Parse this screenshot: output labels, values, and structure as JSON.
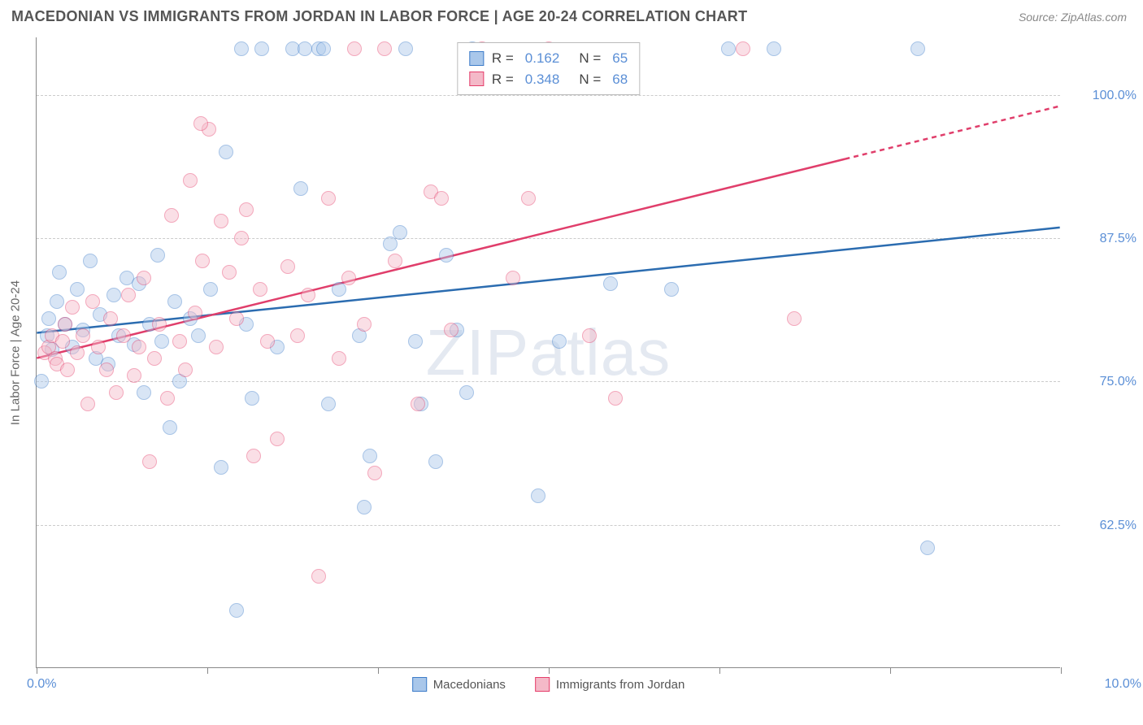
{
  "header": {
    "title": "MACEDONIAN VS IMMIGRANTS FROM JORDAN IN LABOR FORCE | AGE 20-24 CORRELATION CHART",
    "source": "Source: ZipAtlas.com"
  },
  "watermark": "ZIPatlas",
  "chart": {
    "type": "scatter",
    "y_axis_title": "In Labor Force | Age 20-24",
    "xlim": [
      0,
      10
    ],
    "ylim": [
      50,
      105
    ],
    "x_start_label": "0.0%",
    "x_end_label": "10.0%",
    "y_ticks": [
      {
        "v": 62.5,
        "label": "62.5%"
      },
      {
        "v": 75.0,
        "label": "75.0%"
      },
      {
        "v": 87.5,
        "label": "87.5%"
      },
      {
        "v": 100.0,
        "label": "100.0%"
      }
    ],
    "x_tick_positions": [
      0,
      1.67,
      3.33,
      5.0,
      6.67,
      8.33,
      10.0
    ],
    "grid_color": "#cccccc",
    "background_color": "#ffffff",
    "marker_radius": 9,
    "marker_opacity": 0.45,
    "series": [
      {
        "name": "Macedonians",
        "color_fill": "#a9c7ea",
        "color_stroke": "#3d7cc9",
        "R": "0.162",
        "N": "65",
        "trend": {
          "x1": 0,
          "y1": 79.2,
          "x2": 10,
          "y2": 88.4,
          "color": "#2b6cb0",
          "width": 2.5
        },
        "points": [
          {
            "x": 0.05,
            "y": 75.0
          },
          {
            "x": 0.1,
            "y": 79.0
          },
          {
            "x": 0.12,
            "y": 80.5
          },
          {
            "x": 0.15,
            "y": 77.8
          },
          {
            "x": 0.2,
            "y": 82.0
          },
          {
            "x": 0.22,
            "y": 84.5
          },
          {
            "x": 0.28,
            "y": 80.0
          },
          {
            "x": 0.35,
            "y": 78.0
          },
          {
            "x": 0.4,
            "y": 83.0
          },
          {
            "x": 0.45,
            "y": 79.5
          },
          {
            "x": 0.52,
            "y": 85.5
          },
          {
            "x": 0.58,
            "y": 77.0
          },
          {
            "x": 0.62,
            "y": 80.8
          },
          {
            "x": 0.7,
            "y": 76.5
          },
          {
            "x": 0.75,
            "y": 82.5
          },
          {
            "x": 0.8,
            "y": 79.0
          },
          {
            "x": 0.88,
            "y": 84.0
          },
          {
            "x": 0.95,
            "y": 78.2
          },
          {
            "x": 1.0,
            "y": 83.5
          },
          {
            "x": 1.05,
            "y": 74.0
          },
          {
            "x": 1.1,
            "y": 80.0
          },
          {
            "x": 1.18,
            "y": 86.0
          },
          {
            "x": 1.22,
            "y": 78.5
          },
          {
            "x": 1.3,
            "y": 71.0
          },
          {
            "x": 1.35,
            "y": 82.0
          },
          {
            "x": 1.4,
            "y": 75.0
          },
          {
            "x": 1.5,
            "y": 80.5
          },
          {
            "x": 1.58,
            "y": 79.0
          },
          {
            "x": 1.7,
            "y": 83.0
          },
          {
            "x": 1.8,
            "y": 67.5
          },
          {
            "x": 1.85,
            "y": 95.0
          },
          {
            "x": 1.95,
            "y": 55.0
          },
          {
            "x": 2.0,
            "y": 104.0
          },
          {
            "x": 2.05,
            "y": 80.0
          },
          {
            "x": 2.1,
            "y": 73.5
          },
          {
            "x": 2.2,
            "y": 104.0
          },
          {
            "x": 2.35,
            "y": 78.0
          },
          {
            "x": 2.5,
            "y": 104.0
          },
          {
            "x": 2.58,
            "y": 91.8
          },
          {
            "x": 2.62,
            "y": 104.0
          },
          {
            "x": 2.75,
            "y": 104.0
          },
          {
            "x": 2.85,
            "y": 73.0
          },
          {
            "x": 2.95,
            "y": 83.0
          },
          {
            "x": 3.15,
            "y": 79.0
          },
          {
            "x": 3.2,
            "y": 64.0
          },
          {
            "x": 3.25,
            "y": 68.5
          },
          {
            "x": 3.45,
            "y": 87.0
          },
          {
            "x": 3.55,
            "y": 88.0
          },
          {
            "x": 3.7,
            "y": 78.5
          },
          {
            "x": 3.75,
            "y": 73.0
          },
          {
            "x": 3.9,
            "y": 68.0
          },
          {
            "x": 4.25,
            "y": 104.0
          },
          {
            "x": 4.0,
            "y": 86.0
          },
          {
            "x": 4.1,
            "y": 79.5
          },
          {
            "x": 4.2,
            "y": 74.0
          },
          {
            "x": 4.9,
            "y": 65.0
          },
          {
            "x": 5.1,
            "y": 78.5
          },
          {
            "x": 5.6,
            "y": 83.5
          },
          {
            "x": 6.2,
            "y": 83.0
          },
          {
            "x": 6.75,
            "y": 104.0
          },
          {
            "x": 7.2,
            "y": 104.0
          },
          {
            "x": 8.6,
            "y": 104.0
          },
          {
            "x": 8.7,
            "y": 60.5
          },
          {
            "x": 3.6,
            "y": 104.0
          },
          {
            "x": 2.8,
            "y": 104.0
          }
        ]
      },
      {
        "name": "Immigrants from Jordan",
        "color_fill": "#f4b9c8",
        "color_stroke": "#e53e6b",
        "R": "0.348",
        "N": "68",
        "trend": {
          "x1": 0,
          "y1": 77.0,
          "x2": 10,
          "y2": 99.0,
          "color": "#e03e6b",
          "width": 2.5,
          "dash_from_x": 7.9
        },
        "points": [
          {
            "x": 0.08,
            "y": 77.5
          },
          {
            "x": 0.12,
            "y": 78.0
          },
          {
            "x": 0.15,
            "y": 79.0
          },
          {
            "x": 0.18,
            "y": 77.0
          },
          {
            "x": 0.2,
            "y": 76.5
          },
          {
            "x": 0.25,
            "y": 78.5
          },
          {
            "x": 0.28,
            "y": 80.0
          },
          {
            "x": 0.3,
            "y": 76.0
          },
          {
            "x": 0.35,
            "y": 81.5
          },
          {
            "x": 0.4,
            "y": 77.5
          },
          {
            "x": 0.45,
            "y": 79.0
          },
          {
            "x": 0.5,
            "y": 73.0
          },
          {
            "x": 0.55,
            "y": 82.0
          },
          {
            "x": 0.6,
            "y": 78.0
          },
          {
            "x": 0.68,
            "y": 76.0
          },
          {
            "x": 0.72,
            "y": 80.5
          },
          {
            "x": 0.78,
            "y": 74.0
          },
          {
            "x": 0.85,
            "y": 79.0
          },
          {
            "x": 0.9,
            "y": 82.5
          },
          {
            "x": 0.95,
            "y": 75.5
          },
          {
            "x": 1.0,
            "y": 78.0
          },
          {
            "x": 1.05,
            "y": 84.0
          },
          {
            "x": 1.1,
            "y": 68.0
          },
          {
            "x": 1.15,
            "y": 77.0
          },
          {
            "x": 1.2,
            "y": 80.0
          },
          {
            "x": 1.28,
            "y": 73.5
          },
          {
            "x": 1.32,
            "y": 89.5
          },
          {
            "x": 1.4,
            "y": 78.5
          },
          {
            "x": 1.45,
            "y": 76.0
          },
          {
            "x": 1.5,
            "y": 92.5
          },
          {
            "x": 1.55,
            "y": 81.0
          },
          {
            "x": 1.62,
            "y": 85.5
          },
          {
            "x": 1.68,
            "y": 97.0
          },
          {
            "x": 1.75,
            "y": 78.0
          },
          {
            "x": 1.8,
            "y": 89.0
          },
          {
            "x": 1.88,
            "y": 84.5
          },
          {
            "x": 1.95,
            "y": 80.5
          },
          {
            "x": 2.0,
            "y": 87.5
          },
          {
            "x": 2.05,
            "y": 90.0
          },
          {
            "x": 2.12,
            "y": 68.5
          },
          {
            "x": 2.18,
            "y": 83.0
          },
          {
            "x": 2.25,
            "y": 78.5
          },
          {
            "x": 2.35,
            "y": 70.0
          },
          {
            "x": 2.45,
            "y": 85.0
          },
          {
            "x": 2.55,
            "y": 79.0
          },
          {
            "x": 2.65,
            "y": 82.5
          },
          {
            "x": 2.75,
            "y": 58.0
          },
          {
            "x": 2.85,
            "y": 91.0
          },
          {
            "x": 2.95,
            "y": 77.0
          },
          {
            "x": 3.05,
            "y": 84.0
          },
          {
            "x": 3.1,
            "y": 104.0
          },
          {
            "x": 3.2,
            "y": 80.0
          },
          {
            "x": 3.3,
            "y": 67.0
          },
          {
            "x": 3.4,
            "y": 104.0
          },
          {
            "x": 3.5,
            "y": 85.5
          },
          {
            "x": 3.72,
            "y": 73.0
          },
          {
            "x": 3.85,
            "y": 91.5
          },
          {
            "x": 3.95,
            "y": 91.0
          },
          {
            "x": 4.05,
            "y": 79.5
          },
          {
            "x": 4.35,
            "y": 104.0
          },
          {
            "x": 4.65,
            "y": 84.0
          },
          {
            "x": 4.8,
            "y": 91.0
          },
          {
            "x": 5.0,
            "y": 104.0
          },
          {
            "x": 5.4,
            "y": 79.0
          },
          {
            "x": 5.65,
            "y": 73.5
          },
          {
            "x": 6.9,
            "y": 104.0
          },
          {
            "x": 7.4,
            "y": 80.5
          },
          {
            "x": 1.6,
            "y": 97.5
          }
        ]
      }
    ],
    "legend_labels": {
      "series1": "Macedonians",
      "series2": "Immigrants from Jordan"
    },
    "stats_labels": {
      "R": "R =",
      "N": "N ="
    }
  }
}
